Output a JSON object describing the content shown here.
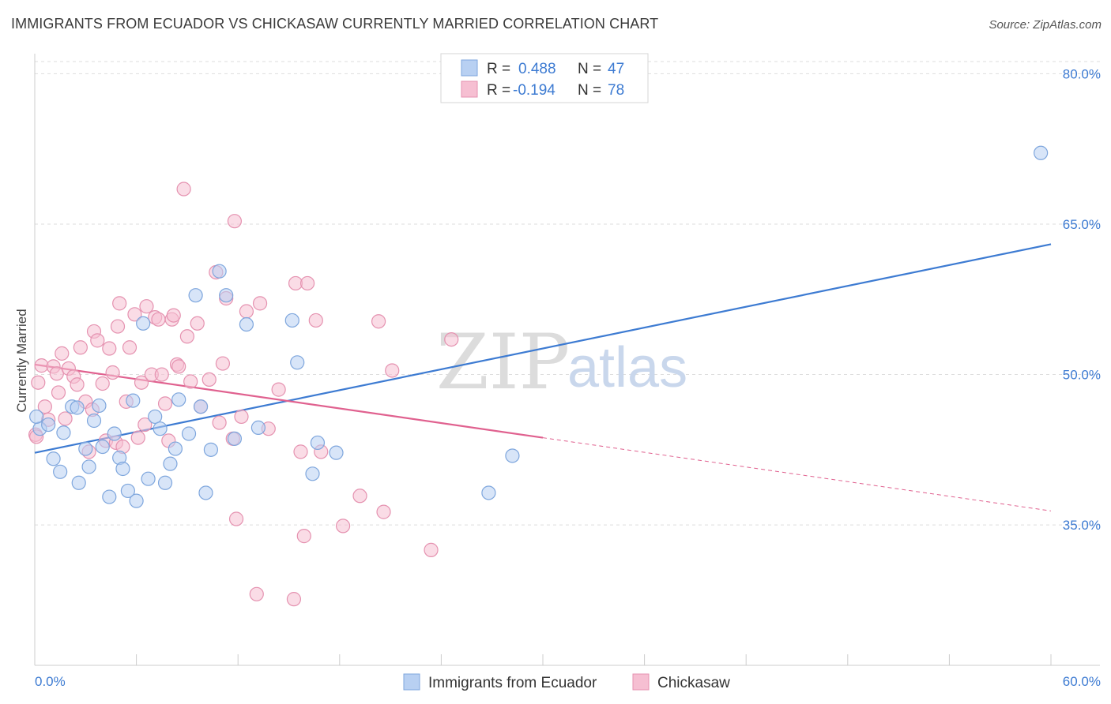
{
  "title": "IMMIGRANTS FROM ECUADOR VS CHICKASAW CURRENTLY MARRIED CORRELATION CHART",
  "source": "Source: ZipAtlas.com",
  "watermark": {
    "zip": "ZIP",
    "atlas": "atlas"
  },
  "legend": {
    "r_label": "R =",
    "n_label": "N =",
    "rows": [
      {
        "r": "0.488",
        "n": "47"
      },
      {
        "r": "-0.194",
        "n": "78"
      }
    ]
  },
  "chart_data": {
    "type": "scatter",
    "title": "IMMIGRANTS FROM ECUADOR VS CHICKASAW CURRENTLY MARRIED CORRELATION CHART",
    "xlabel": "",
    "ylabel": "Currently Married",
    "xlim": [
      0,
      60
    ],
    "ylim": [
      21,
      82
    ],
    "x_tick_labels": [
      "0.0%",
      "60.0%"
    ],
    "y_ticks": [
      35,
      50,
      65,
      80
    ],
    "y_tick_labels": [
      "35.0%",
      "50.0%",
      "65.0%",
      "80.0%"
    ],
    "grid": true,
    "legend_position": "top-center",
    "colors": {
      "blue": "#3d7bd2",
      "blue_fill": "#b8d0f2",
      "pink": "#e0618f",
      "pink_fill": "#f6bfd2",
      "grid": "#dedede",
      "axis": "#cccccc"
    },
    "series": [
      {
        "name": "Immigrants from Ecuador",
        "color": "#3d7bd2",
        "points": [
          [
            0.3,
            44.6
          ],
          [
            0.8,
            45.0
          ],
          [
            1.1,
            41.6
          ],
          [
            1.5,
            40.3
          ],
          [
            1.7,
            44.2
          ],
          [
            2.2,
            46.8
          ],
          [
            2.5,
            46.7
          ],
          [
            2.6,
            39.2
          ],
          [
            3.0,
            42.6
          ],
          [
            3.2,
            40.8
          ],
          [
            3.5,
            45.4
          ],
          [
            3.8,
            46.9
          ],
          [
            4.0,
            42.8
          ],
          [
            4.4,
            37.8
          ],
          [
            4.7,
            44.1
          ],
          [
            5.0,
            41.7
          ],
          [
            5.2,
            40.6
          ],
          [
            5.5,
            38.4
          ],
          [
            5.8,
            47.4
          ],
          [
            6.0,
            37.4
          ],
          [
            6.4,
            55.1
          ],
          [
            6.7,
            39.6
          ],
          [
            7.1,
            45.8
          ],
          [
            7.4,
            44.6
          ],
          [
            7.7,
            39.2
          ],
          [
            8.0,
            41.1
          ],
          [
            8.3,
            42.6
          ],
          [
            8.5,
            47.5
          ],
          [
            9.1,
            44.1
          ],
          [
            9.5,
            57.9
          ],
          [
            9.8,
            46.8
          ],
          [
            10.1,
            38.2
          ],
          [
            10.4,
            42.5
          ],
          [
            10.9,
            60.3
          ],
          [
            11.3,
            57.9
          ],
          [
            11.8,
            43.6
          ],
          [
            12.5,
            55.0
          ],
          [
            13.2,
            44.7
          ],
          [
            15.2,
            55.4
          ],
          [
            15.5,
            51.2
          ],
          [
            16.4,
            40.1
          ],
          [
            16.7,
            43.2
          ],
          [
            17.8,
            42.2
          ],
          [
            26.8,
            38.2
          ],
          [
            28.2,
            41.9
          ],
          [
            59.4,
            72.1
          ],
          [
            0.1,
            45.8
          ]
        ]
      },
      {
        "name": "Chickasaw",
        "color": "#e0618f",
        "points": [
          [
            0.2,
            49.2
          ],
          [
            0.4,
            50.9
          ],
          [
            0.6,
            46.8
          ],
          [
            0.8,
            45.5
          ],
          [
            1.1,
            50.8
          ],
          [
            1.3,
            50.1
          ],
          [
            1.4,
            48.2
          ],
          [
            1.6,
            52.1
          ],
          [
            1.8,
            45.6
          ],
          [
            2.0,
            50.6
          ],
          [
            2.3,
            49.8
          ],
          [
            2.5,
            49.0
          ],
          [
            2.7,
            52.7
          ],
          [
            3.0,
            47.3
          ],
          [
            3.2,
            42.3
          ],
          [
            3.4,
            46.5
          ],
          [
            3.5,
            54.3
          ],
          [
            3.7,
            53.4
          ],
          [
            4.0,
            49.1
          ],
          [
            4.2,
            43.4
          ],
          [
            4.4,
            52.6
          ],
          [
            4.6,
            50.2
          ],
          [
            4.8,
            43.2
          ],
          [
            4.9,
            54.8
          ],
          [
            5.0,
            57.1
          ],
          [
            5.2,
            42.8
          ],
          [
            5.4,
            47.3
          ],
          [
            5.6,
            52.7
          ],
          [
            5.9,
            56.0
          ],
          [
            6.1,
            43.7
          ],
          [
            6.3,
            49.2
          ],
          [
            6.5,
            45.0
          ],
          [
            6.6,
            56.8
          ],
          [
            6.9,
            50.0
          ],
          [
            7.1,
            55.7
          ],
          [
            7.3,
            55.5
          ],
          [
            7.5,
            50.0
          ],
          [
            7.7,
            47.1
          ],
          [
            7.9,
            43.4
          ],
          [
            8.1,
            55.5
          ],
          [
            8.2,
            55.9
          ],
          [
            8.4,
            51.0
          ],
          [
            8.5,
            50.8
          ],
          [
            8.8,
            68.5
          ],
          [
            9.0,
            53.8
          ],
          [
            9.2,
            49.3
          ],
          [
            9.6,
            55.1
          ],
          [
            9.8,
            46.8
          ],
          [
            10.3,
            49.5
          ],
          [
            10.7,
            60.2
          ],
          [
            10.9,
            45.2
          ],
          [
            11.1,
            51.1
          ],
          [
            11.3,
            57.6
          ],
          [
            11.7,
            43.6
          ],
          [
            11.8,
            65.3
          ],
          [
            11.9,
            35.6
          ],
          [
            12.2,
            45.8
          ],
          [
            12.5,
            56.3
          ],
          [
            13.1,
            28.1
          ],
          [
            13.3,
            57.1
          ],
          [
            13.8,
            44.6
          ],
          [
            14.4,
            48.5
          ],
          [
            15.3,
            27.6
          ],
          [
            15.4,
            59.1
          ],
          [
            15.7,
            42.3
          ],
          [
            15.9,
            33.9
          ],
          [
            16.1,
            59.1
          ],
          [
            16.6,
            55.4
          ],
          [
            16.9,
            42.3
          ],
          [
            18.2,
            34.9
          ],
          [
            19.2,
            37.9
          ],
          [
            20.3,
            55.3
          ],
          [
            20.6,
            36.3
          ],
          [
            21.1,
            50.4
          ],
          [
            23.4,
            32.5
          ],
          [
            24.6,
            53.5
          ],
          [
            0.05,
            44.0
          ],
          [
            0.1,
            43.8
          ]
        ]
      }
    ],
    "trend_lines": [
      {
        "series": "Immigrants from Ecuador",
        "x": [
          0,
          60
        ],
        "y": [
          42.2,
          63.0
        ],
        "style": "solid"
      },
      {
        "series": "Chickasaw",
        "x": [
          0,
          30
        ],
        "y": [
          51.0,
          43.7
        ],
        "style": "solid"
      },
      {
        "series": "Chickasaw",
        "x": [
          30,
          60
        ],
        "y": [
          43.7,
          36.4
        ],
        "style": "dashed"
      }
    ]
  }
}
